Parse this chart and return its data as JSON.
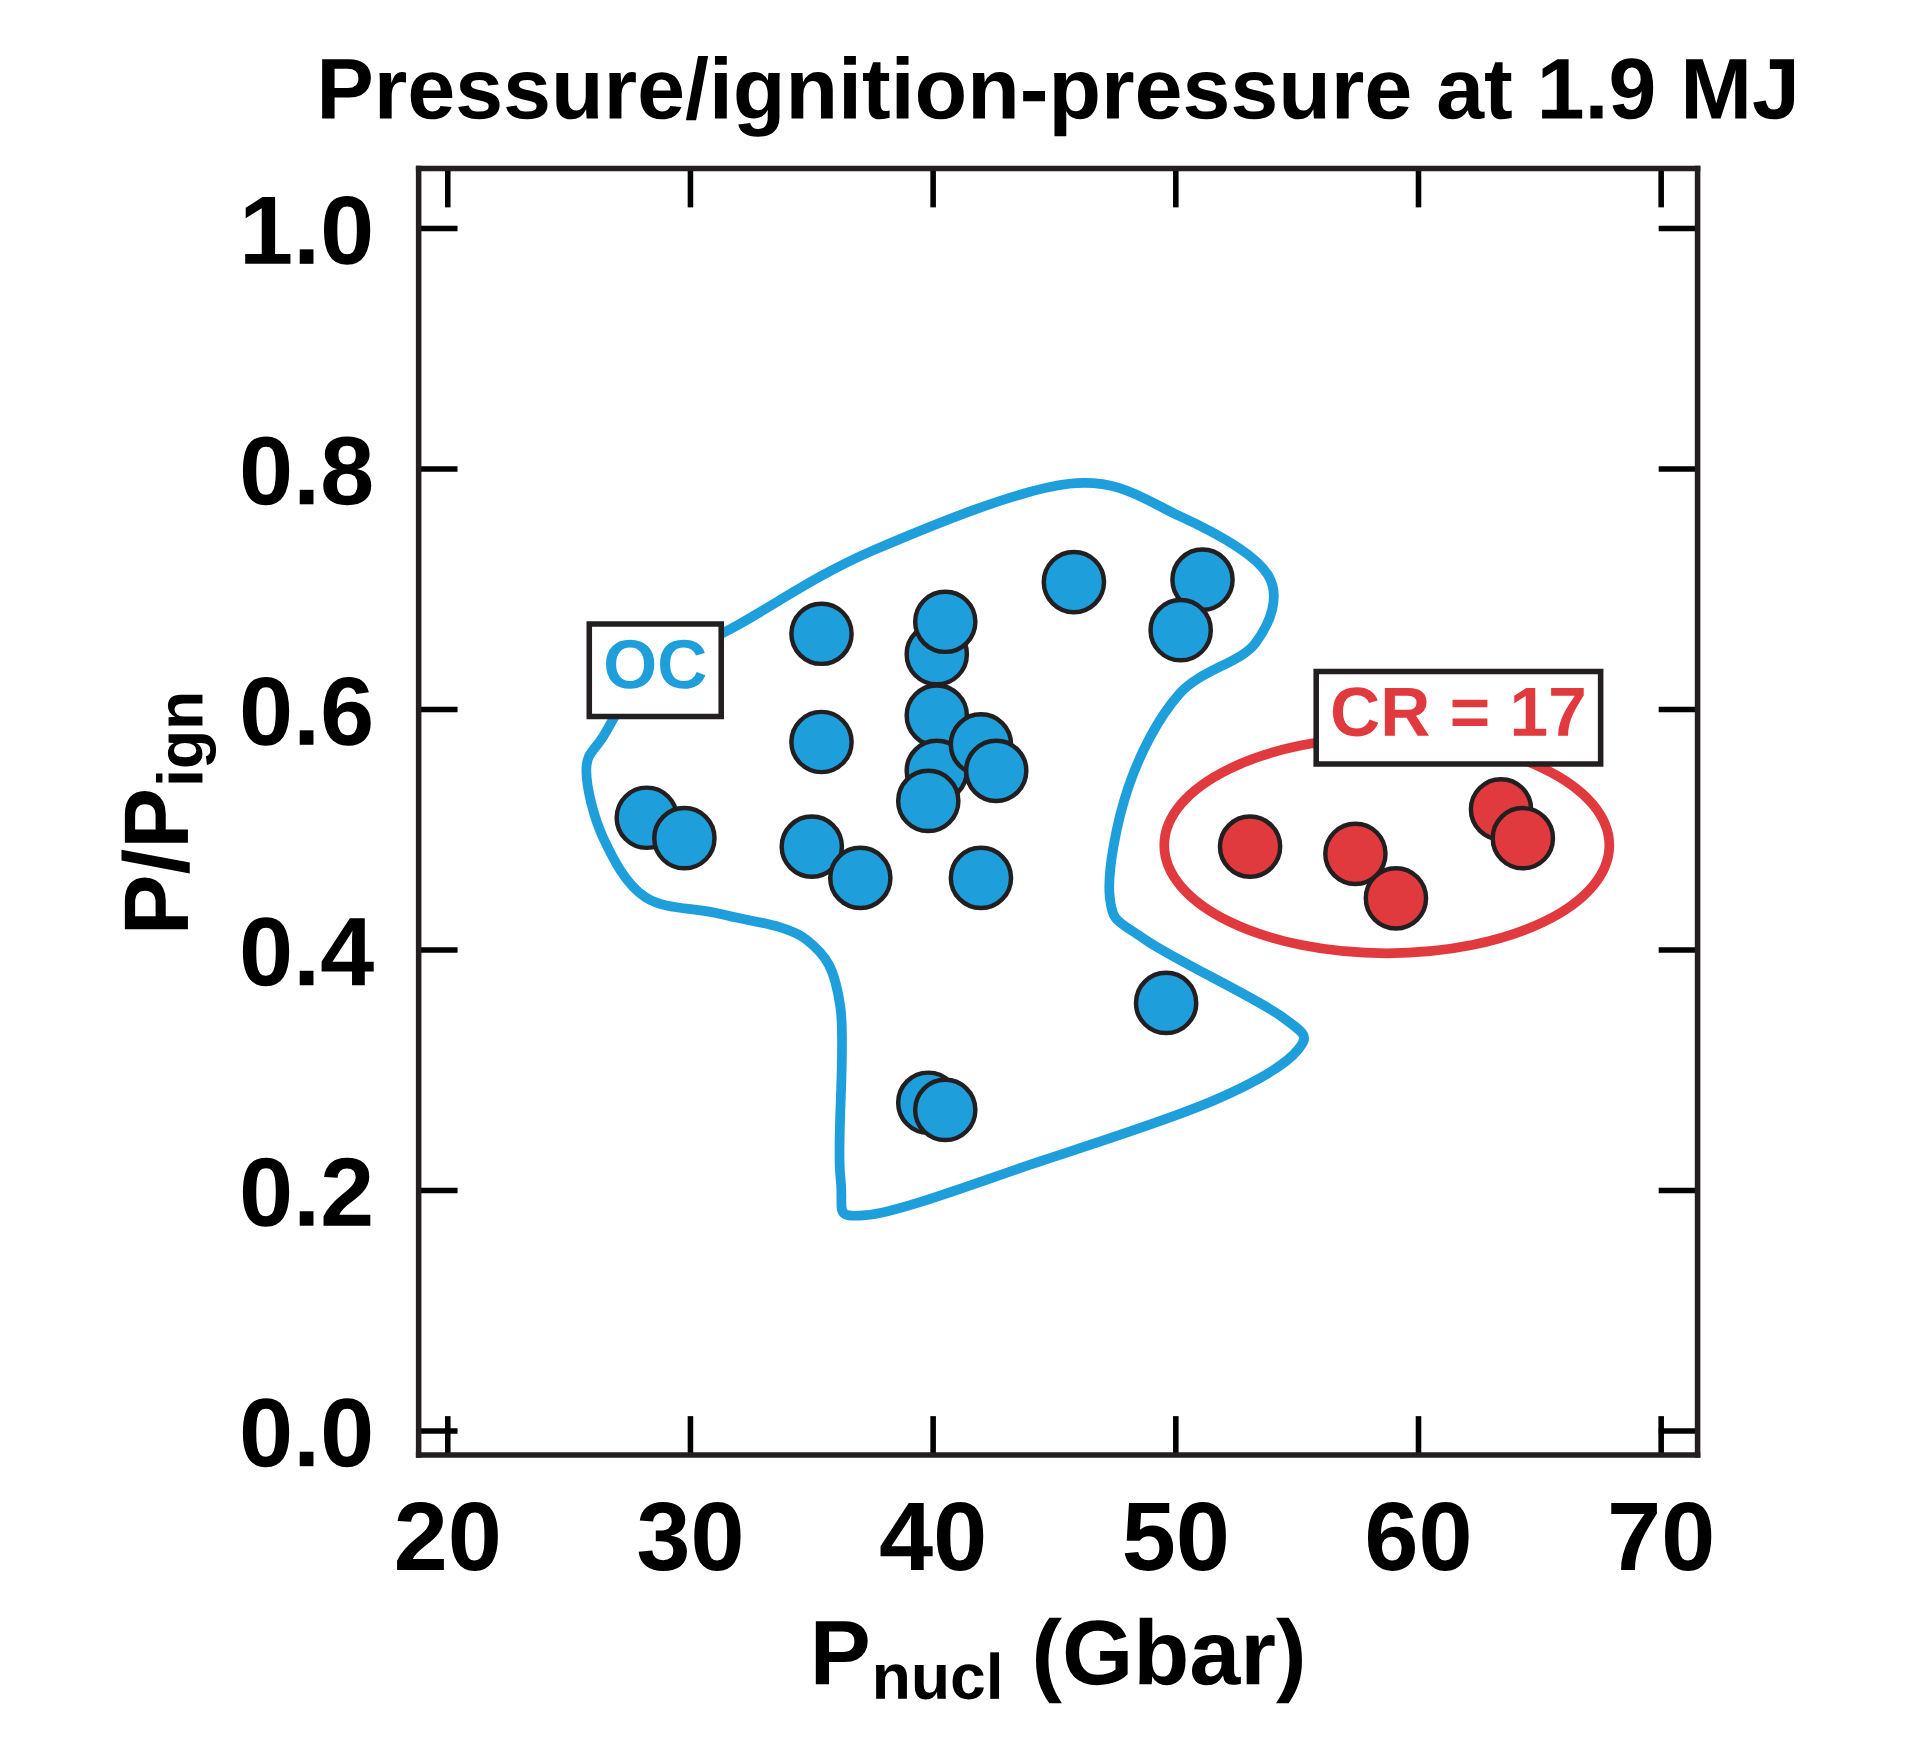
{
  "chart_data": {
    "type": "scatter",
    "title": "Pressure/ignition-pressure at 1.9 MJ",
    "xlabel": "P$_{nucl}$ (Gbar)",
    "ylabel": "P/P$_{ign}$",
    "xlim": [
      18.8,
      71.5
    ],
    "ylim": [
      -0.02,
      1.05
    ],
    "xticks": [
      20,
      30,
      40,
      50,
      60,
      70
    ],
    "yticks": [
      {
        "value": 0,
        "label": "0.0"
      },
      0.2,
      0.4,
      0.6,
      0.8,
      {
        "value": 1,
        "label": "1.0"
      }
    ],
    "marker": "circle",
    "grid": false,
    "legend": false,
    "series": [
      {
        "name": "OC",
        "color": "#1e9edb",
        "x": [
          28.2,
          29.75,
          35.4,
          35.4,
          35.0,
          37.0,
          40.15,
          40.5,
          40.15,
          40.15,
          39.8,
          41.97,
          42.6,
          41.97,
          45.8,
          51.1,
          50.2,
          49.6,
          39.8,
          40.5
        ],
        "values": [
          0.51,
          0.493,
          0.663,
          0.573,
          0.486,
          0.46,
          0.646,
          0.673,
          0.595,
          0.549,
          0.524,
          0.571,
          0.549,
          0.46,
          0.706,
          0.708,
          0.666,
          0.356,
          0.273,
          0.267
        ]
      },
      {
        "name": "CR = 17",
        "color": "#e03a3e",
        "x": [
          53.06,
          57.4,
          59.07,
          63.4,
          64.3
        ],
        "values": [
          0.486,
          0.48,
          0.443,
          0.517,
          0.493
        ]
      }
    ]
  }
}
